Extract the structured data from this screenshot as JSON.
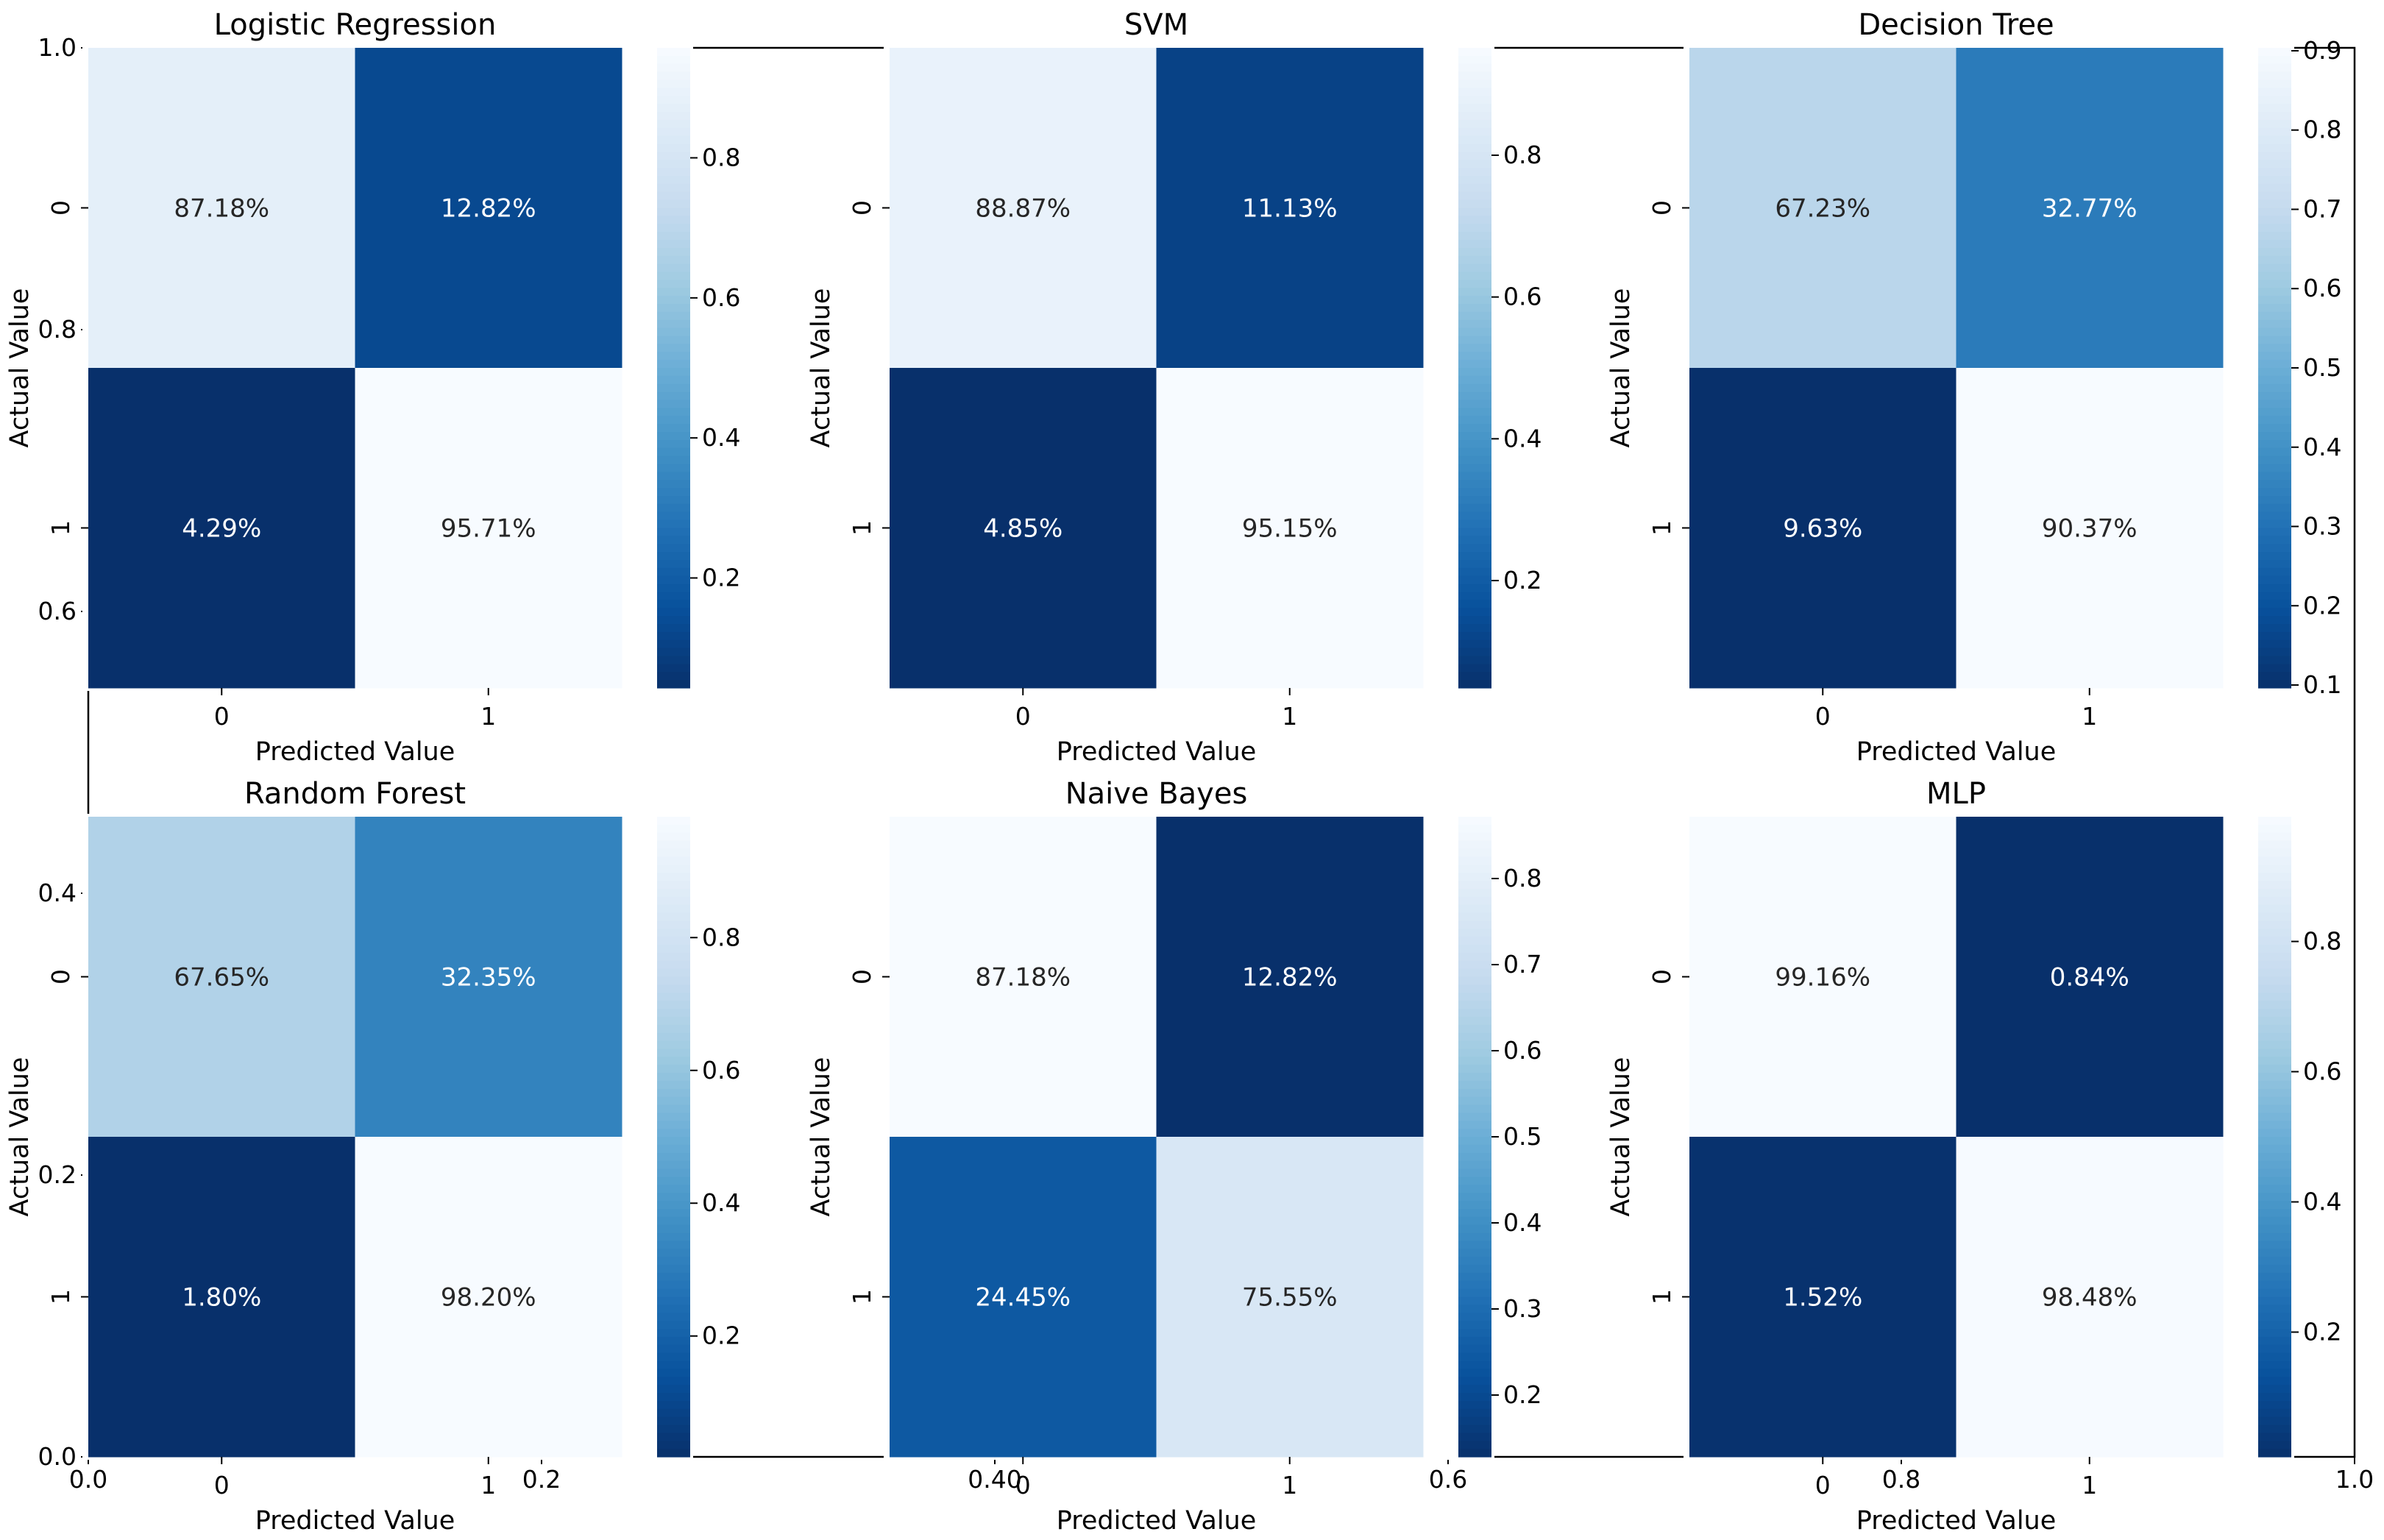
{
  "chart_data": {
    "type": "heatmap",
    "x_tick_labels": [
      "0",
      "1"
    ],
    "y_tick_labels": [
      "0",
      "1"
    ],
    "colormap": "Blues_r",
    "panels": [
      {
        "title": "Logistic Regression",
        "xlabel": "Predicted Value",
        "ylabel": "Actual Value",
        "cells": [
          [
            "87.18%",
            "12.82%"
          ],
          [
            "4.29%",
            "95.71%"
          ]
        ],
        "values": [
          [
            0.8718,
            0.1282
          ],
          [
            0.0429,
            0.9571
          ]
        ],
        "colorbar_ticks": [
          "0.2",
          "0.4",
          "0.6",
          "0.8"
        ]
      },
      {
        "title": "SVM",
        "xlabel": "Predicted Value",
        "ylabel": "Actual Value",
        "cells": [
          [
            "88.87%",
            "11.13%"
          ],
          [
            "4.85%",
            "95.15%"
          ]
        ],
        "values": [
          [
            0.8887,
            0.1113
          ],
          [
            0.0485,
            0.9515
          ]
        ],
        "colorbar_ticks": [
          "0.2",
          "0.4",
          "0.6",
          "0.8"
        ]
      },
      {
        "title": "Decision Tree",
        "xlabel": "Predicted Value",
        "ylabel": "Actual Value",
        "cells": [
          [
            "67.23%",
            "32.77%"
          ],
          [
            "9.63%",
            "90.37%"
          ]
        ],
        "values": [
          [
            0.6723,
            0.3277
          ],
          [
            0.0963,
            0.9037
          ]
        ],
        "colorbar_ticks": [
          "0.1",
          "0.2",
          "0.3",
          "0.4",
          "0.5",
          "0.6",
          "0.7",
          "0.8",
          "0.9"
        ]
      },
      {
        "title": "Random Forest",
        "xlabel": "Predicted Value",
        "ylabel": "Actual Value",
        "cells": [
          [
            "67.65%",
            "32.35%"
          ],
          [
            "1.80%",
            "98.20%"
          ]
        ],
        "values": [
          [
            0.6765,
            0.3235
          ],
          [
            0.018,
            0.982
          ]
        ],
        "colorbar_ticks": [
          "0.2",
          "0.4",
          "0.6",
          "0.8"
        ]
      },
      {
        "title": "Naive Bayes",
        "xlabel": "Predicted Value",
        "ylabel": "Actual Value",
        "cells": [
          [
            "87.18%",
            "12.82%"
          ],
          [
            "24.45%",
            "75.55%"
          ]
        ],
        "values": [
          [
            0.8718,
            0.1282
          ],
          [
            0.2445,
            0.7555
          ]
        ],
        "colorbar_ticks": [
          "0.2",
          "0.3",
          "0.4",
          "0.5",
          "0.6",
          "0.7",
          "0.8"
        ]
      },
      {
        "title": "MLP",
        "xlabel": "Predicted Value",
        "ylabel": "Actual Value",
        "cells": [
          [
            "99.16%",
            "0.84%"
          ],
          [
            "1.52%",
            "98.48%"
          ]
        ],
        "values": [
          [
            0.9916,
            0.0084
          ],
          [
            0.0152,
            0.9848
          ]
        ],
        "colorbar_ticks": [
          "0.2",
          "0.4",
          "0.6",
          "0.8"
        ]
      }
    ],
    "background_axes": {
      "x_ticks": [
        "0.0",
        "0.2",
        "0.40",
        "0.6",
        "0.8",
        "1.0"
      ],
      "y_ticks": [
        "0.0",
        "0.2",
        "0.4",
        "0.6",
        "0.8",
        "1.0"
      ]
    }
  }
}
